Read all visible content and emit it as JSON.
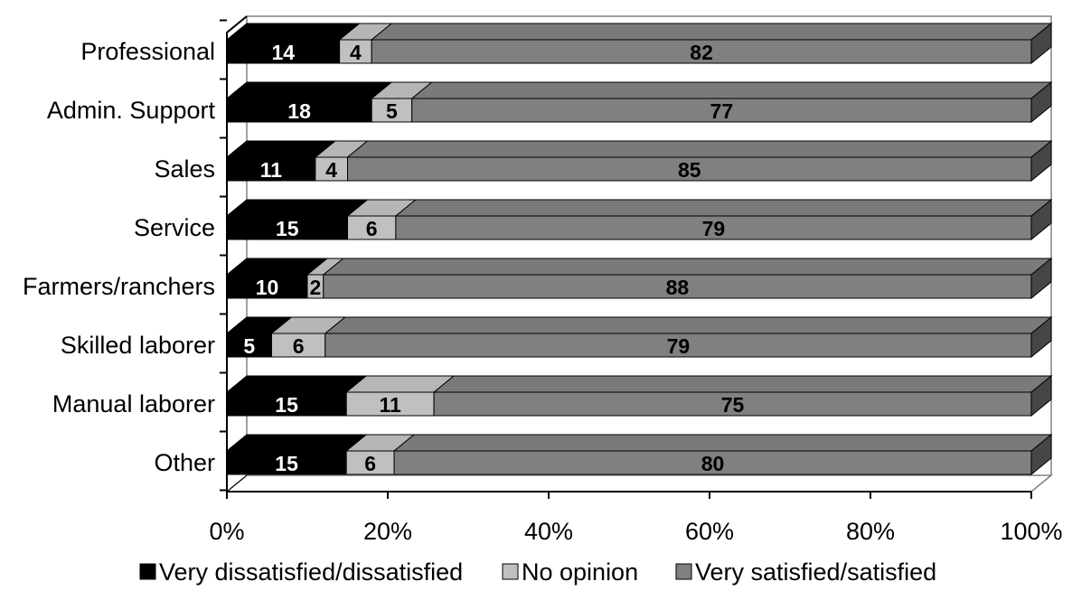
{
  "chart_data": {
    "type": "bar",
    "orientation": "horizontal",
    "stacked": true,
    "percent_stacked": true,
    "three_d": true,
    "categories": [
      "Professional",
      "Admin. Support",
      "Sales",
      "Service",
      "Farmers/ranchers",
      "Skilled laborer",
      "Manual laborer",
      "Other"
    ],
    "series": [
      {
        "name": "Very dissatisfied/dissatisfied",
        "values": [
          14,
          18,
          11,
          15,
          10,
          5,
          15,
          15
        ],
        "color": "#000000",
        "label_color": "#ffffff"
      },
      {
        "name": "No opinion",
        "values": [
          4,
          5,
          4,
          6,
          2,
          6,
          11,
          6
        ],
        "color": "#c0c0c0",
        "label_color": "#000000"
      },
      {
        "name": "Very satisfied/satisfied",
        "values": [
          82,
          77,
          85,
          79,
          88,
          79,
          75,
          80
        ],
        "color": "#808080",
        "label_color": "#000000"
      }
    ],
    "xlim": [
      0,
      100
    ],
    "x_ticks": [
      "0%",
      "20%",
      "40%",
      "60%",
      "80%",
      "100%"
    ],
    "title": "",
    "xlabel": "",
    "ylabel": "",
    "grid": false,
    "legend_position": "bottom"
  }
}
